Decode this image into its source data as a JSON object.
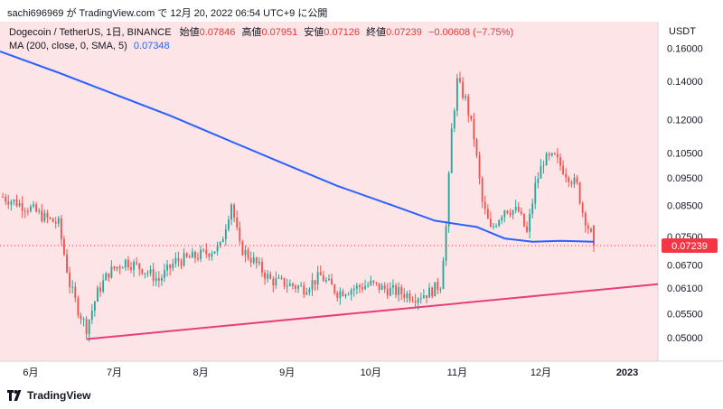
{
  "header": {
    "publish_line": "sachi696969 が TradingView.com で 12月 20, 2022 06:54 UTC+9 に公開"
  },
  "legend": {
    "symbol": "Dogecoin / TetherUS, 1日, BINANCE",
    "open_label": "始値",
    "open_value": "0.07846",
    "high_label": "高値",
    "high_value": "0.07951",
    "low_label": "安値",
    "low_value": "0.07126",
    "close_label": "終値",
    "close_value": "0.07239",
    "change_value": "−0.00608 (−7.75%)",
    "ma_label": "MA (200, close, 0, SMA, 5)",
    "ma_value": "0.07348"
  },
  "footer": {
    "brand": "TradingView"
  },
  "colors": {
    "background": "#fde4e6",
    "up": "#26a69a",
    "down": "#ef5350",
    "ma": "#2962ff",
    "trendline": "#e63e7a",
    "price_tag": "#f23645"
  },
  "chart_data": {
    "type": "candlestick",
    "currency_label": "USDT",
    "y_ticks": [
      "0.16000",
      "0.14000",
      "0.12000",
      "0.10500",
      "0.09500",
      "0.08500",
      "0.07500",
      "0.06700",
      "0.06100",
      "0.05500",
      "0.05000"
    ],
    "y_tick_values": [
      0.16,
      0.14,
      0.12,
      0.105,
      0.095,
      0.085,
      0.075,
      0.067,
      0.061,
      0.055,
      0.05
    ],
    "y_scale": "log",
    "x_ticks": [
      {
        "label": "6月",
        "day": 0
      },
      {
        "label": "7月",
        "day": 30
      },
      {
        "label": "8月",
        "day": 61
      },
      {
        "label": "9月",
        "day": 92
      },
      {
        "label": "10月",
        "day": 122
      },
      {
        "label": "11月",
        "day": 153
      },
      {
        "label": "12月",
        "day": 183
      },
      {
        "label": "2023",
        "day": 214
      }
    ],
    "last_price_tag": "0.07239",
    "candles_close_approx": [
      {
        "day": -10,
        "close": 0.088
      },
      {
        "day": -5,
        "close": 0.086
      },
      {
        "day": 0,
        "close": 0.084
      },
      {
        "day": 5,
        "close": 0.081
      },
      {
        "day": 10,
        "close": 0.079
      },
      {
        "day": 14,
        "close": 0.062
      },
      {
        "day": 17,
        "close": 0.056
      },
      {
        "day": 20,
        "close": 0.052
      },
      {
        "day": 24,
        "close": 0.06
      },
      {
        "day": 28,
        "close": 0.065
      },
      {
        "day": 34,
        "close": 0.068
      },
      {
        "day": 40,
        "close": 0.066
      },
      {
        "day": 46,
        "close": 0.063
      },
      {
        "day": 52,
        "close": 0.068
      },
      {
        "day": 58,
        "close": 0.069
      },
      {
        "day": 62,
        "close": 0.07
      },
      {
        "day": 68,
        "close": 0.072
      },
      {
        "day": 72,
        "close": 0.086
      },
      {
        "day": 75,
        "close": 0.072
      },
      {
        "day": 80,
        "close": 0.068
      },
      {
        "day": 86,
        "close": 0.063
      },
      {
        "day": 92,
        "close": 0.062
      },
      {
        "day": 98,
        "close": 0.061
      },
      {
        "day": 104,
        "close": 0.064
      },
      {
        "day": 110,
        "close": 0.06
      },
      {
        "day": 116,
        "close": 0.061
      },
      {
        "day": 122,
        "close": 0.062
      },
      {
        "day": 126,
        "close": 0.061
      },
      {
        "day": 132,
        "close": 0.06
      },
      {
        "day": 138,
        "close": 0.059
      },
      {
        "day": 143,
        "close": 0.06
      },
      {
        "day": 147,
        "close": 0.062
      },
      {
        "day": 149,
        "close": 0.078
      },
      {
        "day": 151,
        "close": 0.115
      },
      {
        "day": 153,
        "close": 0.14
      },
      {
        "day": 156,
        "close": 0.13
      },
      {
        "day": 159,
        "close": 0.112
      },
      {
        "day": 162,
        "close": 0.086
      },
      {
        "day": 165,
        "close": 0.077
      },
      {
        "day": 170,
        "close": 0.084
      },
      {
        "day": 175,
        "close": 0.083
      },
      {
        "day": 178,
        "close": 0.076
      },
      {
        "day": 181,
        "close": 0.092
      },
      {
        "day": 184,
        "close": 0.102
      },
      {
        "day": 188,
        "close": 0.103
      },
      {
        "day": 192,
        "close": 0.097
      },
      {
        "day": 196,
        "close": 0.092
      },
      {
        "day": 198,
        "close": 0.083
      },
      {
        "day": 200,
        "close": 0.078
      },
      {
        "day": 202,
        "close": 0.0724
      }
    ],
    "ma200_approx": [
      {
        "day": -11,
        "value": 0.158
      },
      {
        "day": 10,
        "value": 0.145
      },
      {
        "day": 30,
        "value": 0.133
      },
      {
        "day": 50,
        "value": 0.122
      },
      {
        "day": 70,
        "value": 0.111
      },
      {
        "day": 90,
        "value": 0.101
      },
      {
        "day": 110,
        "value": 0.092
      },
      {
        "day": 130,
        "value": 0.085
      },
      {
        "day": 145,
        "value": 0.08
      },
      {
        "day": 160,
        "value": 0.078
      },
      {
        "day": 170,
        "value": 0.0745
      },
      {
        "day": 180,
        "value": 0.0735
      },
      {
        "day": 190,
        "value": 0.0738
      },
      {
        "day": 202,
        "value": 0.0735
      }
    ],
    "trendline": [
      {
        "day": 20,
        "value": 0.0497
      },
      {
        "day": 225,
        "value": 0.062
      }
    ]
  }
}
